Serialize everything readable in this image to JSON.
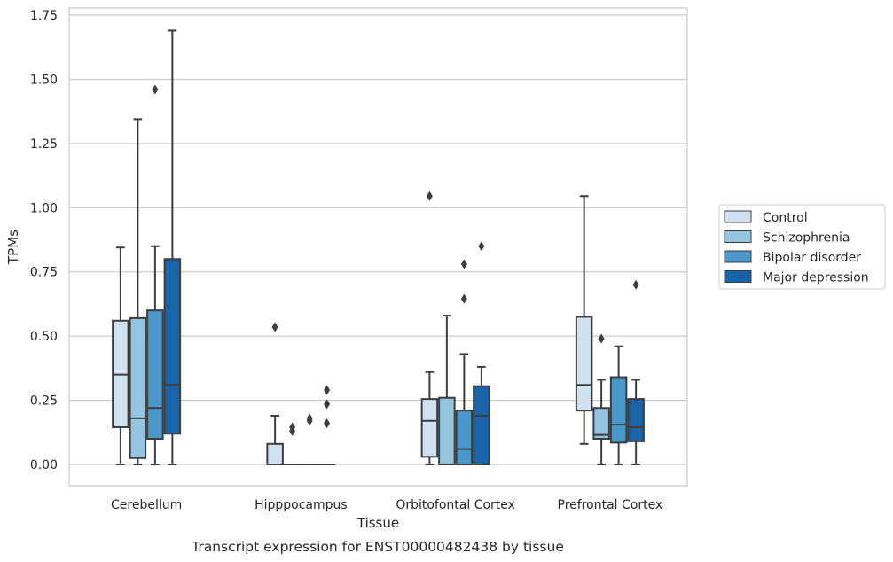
{
  "chart_data": {
    "type": "box",
    "title": "Transcript expression for ENST00000482438 by tissue",
    "xlabel": "Tissue",
    "ylabel": "TPMs",
    "ylim": [
      -0.08,
      1.77
    ],
    "yticks": [
      "0.00",
      "0.25",
      "0.50",
      "0.75",
      "1.00",
      "1.25",
      "1.50",
      "1.75"
    ],
    "ytick_values": [
      0,
      0.25,
      0.5,
      0.75,
      1.0,
      1.25,
      1.5,
      1.75
    ],
    "grid": "horizontal",
    "legend_position": "right",
    "categories": [
      "Cerebellum",
      "Hipppocampus",
      "Orbitofontal Cortex",
      "Prefrontal Cortex"
    ],
    "series": [
      {
        "name": "Control",
        "color": "#d0e1f2",
        "boxes": [
          {
            "whisker_low": 0.0,
            "q1": 0.145,
            "median": 0.35,
            "q3": 0.56,
            "whisker_high": 0.845,
            "outliers": []
          },
          {
            "whisker_low": 0.0,
            "q1": 0.0,
            "median": 0.0,
            "q3": 0.08,
            "whisker_high": 0.19,
            "outliers": [
              0.535
            ]
          },
          {
            "whisker_low": 0.0,
            "q1": 0.03,
            "median": 0.17,
            "q3": 0.255,
            "whisker_high": 0.36,
            "outliers": [
              1.045
            ]
          },
          {
            "whisker_low": 0.08,
            "q1": 0.21,
            "median": 0.31,
            "q3": 0.575,
            "whisker_high": 1.045,
            "outliers": []
          }
        ]
      },
      {
        "name": "Schizophrenia",
        "color": "#94c4df",
        "boxes": [
          {
            "whisker_low": 0.0,
            "q1": 0.025,
            "median": 0.18,
            "q3": 0.57,
            "whisker_high": 1.345,
            "outliers": []
          },
          {
            "whisker_low": 0.0,
            "q1": 0.0,
            "median": 0.0,
            "q3": 0.0,
            "whisker_high": 0.0,
            "outliers": [
              0.13,
              0.145
            ]
          },
          {
            "whisker_low": 0.0,
            "q1": 0.0,
            "median": 0.0,
            "q3": 0.26,
            "whisker_high": 0.58,
            "outliers": []
          },
          {
            "whisker_low": 0.0,
            "q1": 0.1,
            "median": 0.115,
            "q3": 0.22,
            "whisker_high": 0.33,
            "outliers": [
              0.49
            ]
          }
        ]
      },
      {
        "name": "Bipolar disorder",
        "color": "#4a98c9",
        "boxes": [
          {
            "whisker_low": 0.0,
            "q1": 0.1,
            "median": 0.22,
            "q3": 0.6,
            "whisker_high": 0.85,
            "outliers": [
              1.46
            ]
          },
          {
            "whisker_low": 0.0,
            "q1": 0.0,
            "median": 0.0,
            "q3": 0.0,
            "whisker_high": 0.0,
            "outliers": [
              0.17,
              0.18
            ]
          },
          {
            "whisker_low": 0.0,
            "q1": 0.0,
            "median": 0.06,
            "q3": 0.21,
            "whisker_high": 0.43,
            "outliers": [
              0.645,
              0.78
            ]
          },
          {
            "whisker_low": 0.0,
            "q1": 0.085,
            "median": 0.155,
            "q3": 0.34,
            "whisker_high": 0.46,
            "outliers": []
          }
        ]
      },
      {
        "name": "Major depression",
        "color": "#1764ab",
        "boxes": [
          {
            "whisker_low": 0.0,
            "q1": 0.12,
            "median": 0.31,
            "q3": 0.8,
            "whisker_high": 1.69,
            "outliers": []
          },
          {
            "whisker_low": 0.0,
            "q1": 0.0,
            "median": 0.0,
            "q3": 0.0,
            "whisker_high": 0.0,
            "outliers": [
              0.16,
              0.235,
              0.29
            ]
          },
          {
            "whisker_low": 0.0,
            "q1": 0.0,
            "median": 0.19,
            "q3": 0.305,
            "whisker_high": 0.38,
            "outliers": [
              0.85
            ]
          },
          {
            "whisker_low": 0.0,
            "q1": 0.09,
            "median": 0.145,
            "q3": 0.255,
            "whisker_high": 0.33,
            "outliers": [
              0.7
            ]
          }
        ]
      }
    ]
  }
}
